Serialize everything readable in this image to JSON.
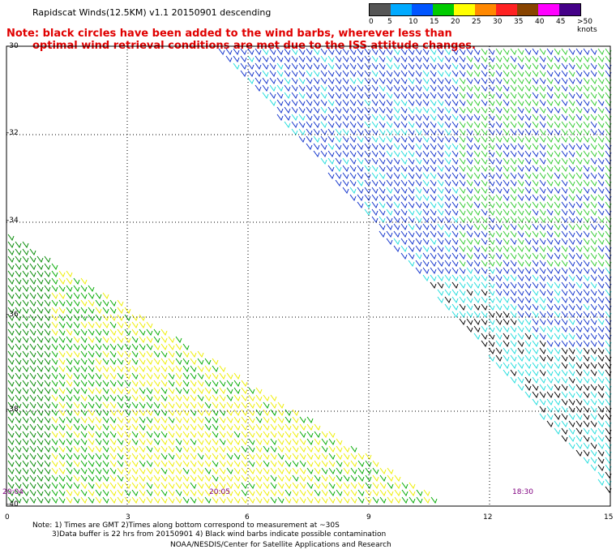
{
  "title": "Rapidscat Winds(12.5KM) v1.1 20150901 descending",
  "note": {
    "line1": "Note: black circles have been added to the wind barbs, wherever less than",
    "line2": "optimal wind retrieval conditions are met due to the ISS attitude changes."
  },
  "scale": {
    "colors": [
      "#555555",
      "#00aaff",
      "#0055ff",
      "#00cc00",
      "#ffff00",
      "#ff8800",
      "#ff2222",
      "#884400",
      "#ff00ff",
      "#440088"
    ],
    "labels": [
      "0",
      "5",
      "10",
      "15",
      "20",
      "25",
      "30",
      "35",
      "40",
      "45",
      ">50 knots"
    ]
  },
  "lat_labels": [
    "-30",
    "-32",
    "-34",
    "-36",
    "-38",
    "-40"
  ],
  "lon_labels": [
    "0",
    "3",
    "6",
    "9",
    "12",
    "15"
  ],
  "time_labels": [
    "20:04",
    "20:05",
    "18:30"
  ],
  "footer": {
    "line1": "Note: 1) Times are GMT 2)Times along bottom correspond to measurement at ~30S",
    "line2": "3)Data buffer is 22 hrs from 20150901 4) Black wind barbs indicate possible contamination",
    "line3": "NOAA/NESDIS/Center for Satellite Applications and Research"
  }
}
